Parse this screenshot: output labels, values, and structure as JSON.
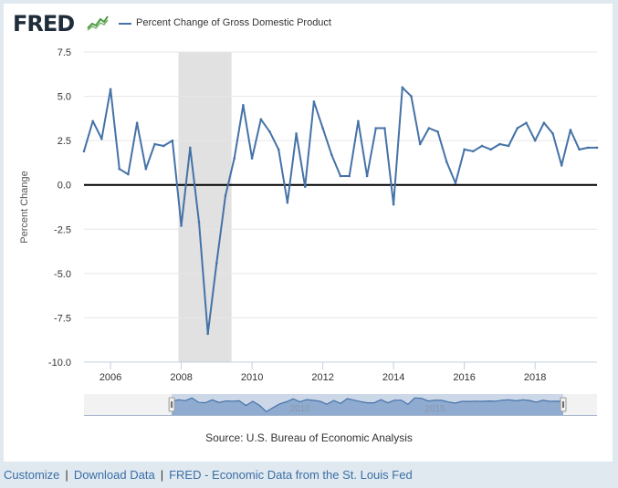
{
  "header": {
    "logo_text": "FRED",
    "legend_label": "Percent Change of Gross Domestic Product",
    "series_color": "#4572a7"
  },
  "chart_data": {
    "type": "line",
    "title": "Percent Change of Gross Domestic Product",
    "ylabel": "Percent Change",
    "xlabel": "",
    "xlim": [
      2005.25,
      2019.75
    ],
    "ylim": [
      -10.0,
      7.5
    ],
    "y_ticks": [
      7.5,
      5.0,
      2.5,
      0.0,
      -2.5,
      -5.0,
      -7.5,
      -10.0
    ],
    "y_tick_labels": [
      "7.5",
      "5.0",
      "2.5",
      "0.0",
      "-2.5",
      "-5.0",
      "-7.5",
      "-10.0"
    ],
    "x_ticks": [
      2006,
      2008,
      2010,
      2012,
      2014,
      2016,
      2018
    ],
    "x_tick_labels": [
      "2006",
      "2008",
      "2010",
      "2012",
      "2014",
      "2016",
      "2018"
    ],
    "recession": [
      2007.92,
      2009.42
    ],
    "zero_line": 0,
    "series": [
      {
        "name": "Percent Change of Gross Domestic Product",
        "x": [
          2005.25,
          2005.5,
          2005.75,
          2006.0,
          2006.25,
          2006.5,
          2006.75,
          2007.0,
          2007.25,
          2007.5,
          2007.75,
          2008.0,
          2008.25,
          2008.5,
          2008.75,
          2009.0,
          2009.25,
          2009.5,
          2009.75,
          2010.0,
          2010.25,
          2010.5,
          2010.75,
          2011.0,
          2011.25,
          2011.5,
          2011.75,
          2012.0,
          2012.25,
          2012.5,
          2012.75,
          2013.0,
          2013.25,
          2013.5,
          2013.75,
          2014.0,
          2014.25,
          2014.5,
          2014.75,
          2015.0,
          2015.25,
          2015.5,
          2015.75,
          2016.0,
          2016.25,
          2016.5,
          2016.75,
          2017.0,
          2017.25,
          2017.5,
          2017.75,
          2018.0,
          2018.25,
          2018.5,
          2018.75,
          2019.0,
          2019.25,
          2019.5,
          2019.75
        ],
        "values": [
          1.9,
          3.6,
          2.6,
          5.4,
          0.9,
          0.6,
          3.5,
          0.9,
          2.3,
          2.2,
          2.5,
          -2.3,
          2.1,
          -2.1,
          -8.4,
          -4.4,
          -0.6,
          1.5,
          4.5,
          1.5,
          3.7,
          3.0,
          2.0,
          -1.0,
          2.9,
          -0.1,
          4.7,
          3.2,
          1.7,
          0.5,
          0.5,
          3.6,
          0.5,
          3.2,
          3.2,
          -1.1,
          5.5,
          5.0,
          2.3,
          3.2,
          3.0,
          1.3,
          0.1,
          2.0,
          1.9,
          2.2,
          2.0,
          2.3,
          2.2,
          3.2,
          3.5,
          2.5,
          3.5,
          2.9,
          1.1,
          3.1,
          2.0,
          2.1,
          2.1
        ]
      }
    ],
    "navigator": {
      "tick_labels": [
        "2010",
        "2015"
      ],
      "tick_values": [
        2010,
        2015
      ],
      "xlim": [
        2002.0,
        2021.0
      ]
    }
  },
  "footer": {
    "source": "Source: U.S. Bureau of Economic Analysis",
    "links": [
      "Customize",
      "Download Data",
      "FRED - Economic Data from the St. Louis Fed"
    ],
    "separator": "|"
  }
}
